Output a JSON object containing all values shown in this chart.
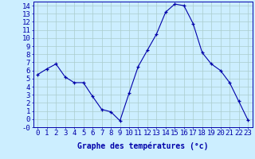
{
  "hours": [
    0,
    1,
    2,
    3,
    4,
    5,
    6,
    7,
    8,
    9,
    10,
    11,
    12,
    13,
    14,
    15,
    16,
    17,
    18,
    19,
    20,
    21,
    22,
    23
  ],
  "temps": [
    5.5,
    6.2,
    6.8,
    5.2,
    4.5,
    4.5,
    2.8,
    1.2,
    0.9,
    -0.2,
    3.2,
    6.5,
    8.5,
    10.5,
    13.2,
    14.2,
    14.0,
    11.8,
    8.2,
    6.8,
    6.0,
    4.5,
    2.2,
    -0.1
  ],
  "line_color": "#0000aa",
  "marker": "+",
  "bg_color": "#cceeff",
  "grid_color": "#aacccc",
  "xlabel": "Graphe des températures (°c)",
  "ylim_min": -1,
  "ylim_max": 14,
  "font_size": 6.5
}
